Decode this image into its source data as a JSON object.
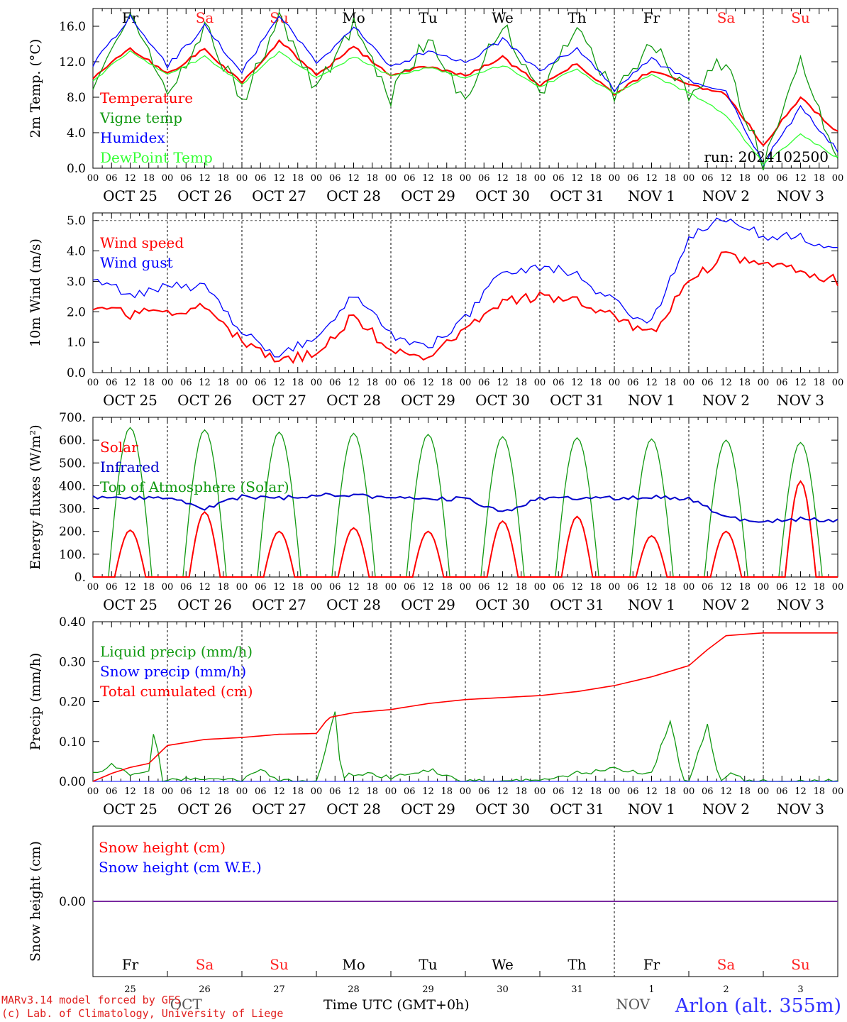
{
  "footer": {
    "model_line": "MARv3.14 model forced by GFS",
    "credit_line": "(c) Lab. of Climatology, University of Liege",
    "station": "Arlon (alt. 355m)",
    "x_axis_title": "Time UTC (GMT+0h)"
  },
  "chart_data": [
    {
      "type": "line",
      "ylabel": "2m Temp. (°C)",
      "ylim": [
        0,
        18
      ],
      "yticks": [
        "0.0",
        "4.0",
        "8.0",
        "12.0",
        "16.0"
      ],
      "annotation": "run: 2024102500",
      "weekdays": [
        "Fr",
        "Sa",
        "Su",
        "Mo",
        "Tu",
        "We",
        "Th",
        "Fr",
        "Sa",
        "Su"
      ],
      "x_hours": [
        0,
        12,
        24,
        36,
        48,
        60,
        72,
        84,
        96,
        108,
        120,
        132,
        144,
        156,
        168,
        180,
        192,
        204,
        216,
        228,
        240
      ],
      "series": [
        {
          "name": "Temperature",
          "color": "#ff0000",
          "values": [
            10.2,
            13.5,
            10.6,
            13.4,
            9.6,
            14.4,
            10.5,
            13.6,
            10.5,
            11.5,
            10.5,
            12.5,
            9.4,
            11.8,
            8.4,
            11.0,
            9.4,
            8.4,
            2.6,
            8.0,
            4.0
          ]
        },
        {
          "name": "Vigne temp",
          "color": "#119911",
          "values": [
            9.8,
            16.8,
            8.5,
            16.0,
            7.5,
            16.8,
            8.8,
            16.0,
            8.0,
            14.8,
            7.5,
            16.5,
            8.2,
            16.0,
            8.2,
            14.0,
            8.5,
            12.3,
            0.3,
            12.5,
            0.5
          ]
        },
        {
          "name": "Humidex",
          "color": "#0000ff",
          "values": [
            11.6,
            17.2,
            11.5,
            16.0,
            10.8,
            17.2,
            11.8,
            16.0,
            11.2,
            13.3,
            12.0,
            14.5,
            10.8,
            13.7,
            8.8,
            12.3,
            10.0,
            8.5,
            0.5,
            6.8,
            2.0
          ]
        },
        {
          "name": "DewPoint Temp",
          "color": "#33ff33",
          "values": [
            9.9,
            13.2,
            10.5,
            12.6,
            9.5,
            13.2,
            10.2,
            12.6,
            10.4,
            11.3,
            10.2,
            11.6,
            9.2,
            11.2,
            8.3,
            10.5,
            8.5,
            6.0,
            0.5,
            3.8,
            1.2
          ]
        }
      ]
    },
    {
      "type": "line",
      "ylabel": "10m Wind (m/s)",
      "ylim": [
        0,
        5.25
      ],
      "yticks": [
        "0.0",
        "1.0",
        "2.0",
        "3.0",
        "4.0",
        "5.0"
      ],
      "x_hours": [
        0,
        12,
        24,
        36,
        48,
        60,
        72,
        84,
        96,
        108,
        120,
        132,
        144,
        156,
        168,
        180,
        192,
        204,
        216,
        228,
        240
      ],
      "series": [
        {
          "name": "Wind speed",
          "color": "#ff0000",
          "values": [
            2.2,
            1.9,
            2.0,
            2.2,
            1.0,
            0.4,
            0.6,
            1.9,
            0.7,
            0.4,
            1.4,
            2.3,
            2.5,
            2.4,
            1.8,
            1.3,
            3.0,
            3.9,
            3.5,
            3.4,
            3.0
          ]
        },
        {
          "name": "Wind gust",
          "color": "#0000ff",
          "values": [
            3.1,
            2.6,
            2.8,
            2.9,
            1.3,
            0.6,
            1.2,
            2.6,
            1.2,
            0.8,
            1.8,
            3.3,
            3.5,
            3.2,
            2.3,
            1.6,
            4.5,
            5.1,
            4.5,
            4.5,
            4.0
          ]
        }
      ]
    },
    {
      "type": "line",
      "ylabel": "Energy fluxes (W/m²)",
      "ylim": [
        0,
        700
      ],
      "yticks": [
        "0.",
        "100.",
        "200.",
        "300.",
        "400.",
        "500.",
        "600.",
        "700."
      ],
      "series": [
        {
          "name": "Solar",
          "color": "#ff0000",
          "daily_peak": [
            205,
            285,
            200,
            215,
            200,
            245,
            265,
            180,
            200,
            420
          ]
        },
        {
          "name": "Infrared",
          "color": "#0000cc",
          "x_hours": [
            0,
            12,
            24,
            36,
            48,
            60,
            72,
            84,
            96,
            108,
            120,
            132,
            144,
            156,
            168,
            180,
            192,
            204,
            216,
            228,
            240
          ],
          "values": [
            350,
            345,
            350,
            295,
            355,
            345,
            360,
            355,
            350,
            340,
            345,
            285,
            345,
            345,
            345,
            350,
            345,
            260,
            240,
            255,
            245
          ]
        },
        {
          "name": "Top of Atmosphere (Solar)",
          "color": "#119911",
          "daily_peak": [
            655,
            645,
            635,
            630,
            625,
            615,
            610,
            605,
            600,
            590
          ]
        }
      ]
    },
    {
      "type": "line",
      "ylabel": "Precip (mm/h)",
      "ylim": [
        0,
        0.4
      ],
      "yticks": [
        "0.00",
        "0.10",
        "0.20",
        "0.30",
        "0.40"
      ],
      "series": [
        {
          "name": "Liquid precip (mm/h)",
          "color": "#119911",
          "x_hours": [
            0,
            6,
            12,
            18,
            20,
            22,
            24,
            36,
            48,
            54,
            60,
            72,
            78,
            80,
            84,
            96,
            108,
            120,
            144,
            156,
            168,
            180,
            186,
            190,
            192,
            198,
            202,
            206,
            210,
            216,
            240
          ],
          "values": [
            0.02,
            0.04,
            0.02,
            0.03,
            0.15,
            0.0,
            0.0,
            0.01,
            0.0,
            0.03,
            0.0,
            0.0,
            0.17,
            0.01,
            0.02,
            0.01,
            0.03,
            0.0,
            0.0,
            0.02,
            0.03,
            0.02,
            0.15,
            0.01,
            0.0,
            0.14,
            0.0,
            0.02,
            0.0,
            0.0,
            0.0
          ]
        },
        {
          "name": "Snow precip (mm/h)",
          "color": "#0000ff",
          "x_hours": [
            0,
            240
          ],
          "values": [
            0,
            0
          ]
        },
        {
          "name": "Total cumulated (cm)",
          "color": "#ff0000",
          "x_hours": [
            0,
            6,
            12,
            18,
            24,
            36,
            48,
            60,
            72,
            76,
            84,
            96,
            108,
            120,
            144,
            156,
            168,
            180,
            192,
            198,
            204,
            216,
            240
          ],
          "values": [
            0.0,
            0.02,
            0.035,
            0.045,
            0.09,
            0.105,
            0.11,
            0.118,
            0.12,
            0.16,
            0.172,
            0.18,
            0.195,
            0.205,
            0.215,
            0.225,
            0.24,
            0.262,
            0.29,
            0.33,
            0.365,
            0.372,
            0.372
          ]
        }
      ]
    },
    {
      "type": "line",
      "ylabel": "Snow height (cm)",
      "yticks": [
        "0.00"
      ],
      "series": [
        {
          "name": "Snow height (cm)",
          "color": "#ff0000",
          "values": [
            0,
            0
          ]
        },
        {
          "name": "Snow height (cm W.E.)",
          "color": "#0000ff",
          "values": [
            0,
            0
          ]
        }
      ],
      "day_numbers": [
        "25",
        "26",
        "27",
        "28",
        "29",
        "30",
        "31",
        "1",
        "2",
        "3"
      ],
      "month_labels": [
        "OCT",
        "NOV"
      ]
    }
  ],
  "shared_x_axis": {
    "hour_ticks": [
      "00",
      "06",
      "12",
      "18"
    ],
    "date_labels": [
      "OCT 25",
      "OCT 26",
      "OCT 27",
      "OCT 28",
      "OCT 29",
      "OCT 30",
      "OCT 31",
      "NOV  1",
      "NOV  2",
      "NOV  3"
    ],
    "weekend_color": "#ff2222",
    "weekday_color": "#000000"
  }
}
